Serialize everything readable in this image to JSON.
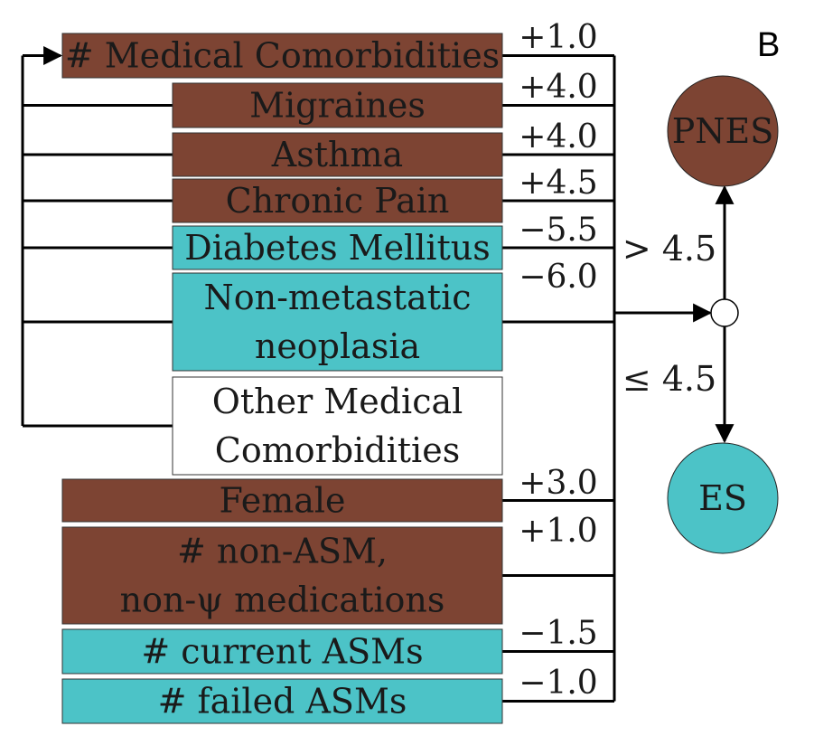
{
  "panel_label": "B",
  "colors": {
    "pnes_fill": "#7d4433",
    "es_fill": "#4cc3c7",
    "neutral_fill": "#ffffff",
    "line": "#000000"
  },
  "features": [
    {
      "id": "medical-comorbidities",
      "lines": [
        "# Medical Comorbidities"
      ],
      "weight": "+1.0",
      "class": "pnes"
    },
    {
      "id": "migraines",
      "lines": [
        "Migraines"
      ],
      "weight": "+4.0",
      "class": "pnes"
    },
    {
      "id": "asthma",
      "lines": [
        "Asthma"
      ],
      "weight": "+4.0",
      "class": "pnes"
    },
    {
      "id": "chronic-pain",
      "lines": [
        "Chronic Pain"
      ],
      "weight": "+4.5",
      "class": "pnes"
    },
    {
      "id": "diabetes-mellitus",
      "lines": [
        "Diabetes Mellitus"
      ],
      "weight": "−5.5",
      "class": "es"
    },
    {
      "id": "non-metastatic-neoplasia",
      "lines": [
        "Non-metastatic",
        "neoplasia"
      ],
      "weight": "−6.0",
      "class": "es"
    },
    {
      "id": "other-medical-comorbidities",
      "lines": [
        "Other Medical",
        "Comorbidities"
      ],
      "weight": "",
      "class": "neutral"
    },
    {
      "id": "female",
      "lines": [
        "Female"
      ],
      "weight": "+3.0",
      "class": "pnes"
    },
    {
      "id": "non-asm-medications",
      "lines": [
        "# non-ASM,",
        "non-ψ medications"
      ],
      "weight": "+1.0",
      "class": "pnes"
    },
    {
      "id": "current-asms",
      "lines": [
        "# current ASMs"
      ],
      "weight": "−1.5",
      "class": "es"
    },
    {
      "id": "failed-asms",
      "lines": [
        "# failed ASMs"
      ],
      "weight": "−1.0",
      "class": "es"
    }
  ],
  "threshold": {
    "above_label": "> 4.5",
    "below_label": "≤ 4.5"
  },
  "outcomes": {
    "pnes": {
      "label": "PNES"
    },
    "es": {
      "label": "ES"
    }
  }
}
